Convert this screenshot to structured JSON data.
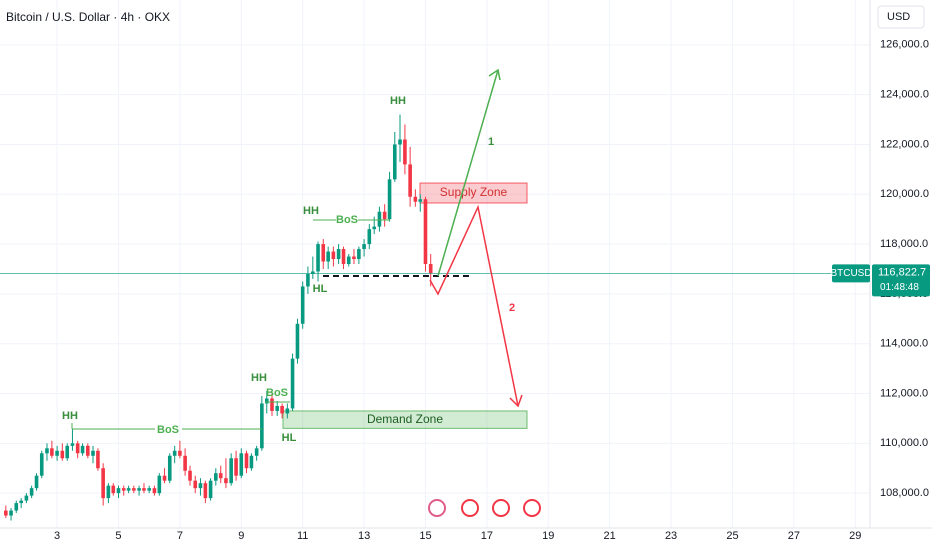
{
  "chart_data": {
    "type": "candlestick",
    "title": "Bitcoin / U.S. Dollar · 4h · OKX",
    "currency": "USD",
    "symbol": "BTCUSD",
    "countdown": "01:48:48",
    "current_price": {
      "value": 116822.7,
      "label": "116,822.7"
    },
    "up_color": "#089981",
    "down_color": "#f23645",
    "x": [
      1.33,
      1.5,
      1.67,
      1.83,
      2,
      2.17,
      2.33,
      2.5,
      2.67,
      2.83,
      3,
      3.17,
      3.33,
      3.5,
      3.67,
      3.83,
      4,
      4.17,
      4.33,
      4.5,
      4.67,
      4.83,
      5,
      5.17,
      5.33,
      5.5,
      5.67,
      5.83,
      6,
      6.17,
      6.33,
      6.5,
      6.67,
      6.83,
      7,
      7.17,
      7.33,
      7.5,
      7.67,
      7.83,
      8,
      8.17,
      8.33,
      8.5,
      8.67,
      8.83,
      9,
      9.17,
      9.33,
      9.5,
      9.67,
      9.83,
      10,
      10.17,
      10.33,
      10.5,
      10.67,
      10.83,
      11,
      11.17,
      11.33,
      11.5,
      11.67,
      11.83,
      12,
      12.17,
      12.33,
      12.5,
      12.67,
      12.83,
      13,
      13.17,
      13.33,
      13.5,
      13.67,
      13.83,
      14,
      14.17,
      14.33,
      14.5,
      14.67,
      14.83,
      15,
      15.17
    ],
    "open": [
      107300,
      107100,
      107300,
      107600,
      107700,
      107900,
      108200,
      108700,
      109600,
      109800,
      109500,
      109700,
      109400,
      109900,
      110000,
      109600,
      109900,
      109500,
      109700,
      109000,
      107800,
      108300,
      108000,
      108200,
      108100,
      108200,
      108100,
      108200,
      108100,
      108200,
      108000,
      108700,
      108500,
      109500,
      109700,
      109500,
      108900,
      108500,
      108200,
      108400,
      107800,
      108500,
      108800,
      108600,
      108400,
      109400,
      108700,
      109600,
      109000,
      109500,
      109800,
      111600,
      111800,
      111300,
      111500,
      111200,
      111400,
      113400,
      114800,
      116300,
      116800,
      116900,
      118000,
      117300,
      117700,
      117400,
      117800,
      117200,
      117500,
      117400,
      117800,
      118000,
      118600,
      118700,
      119300,
      119000,
      120600,
      122000,
      122200,
      121200,
      119900,
      119700,
      119800,
      117200
    ],
    "high": [
      107500,
      107400,
      107700,
      107800,
      108000,
      108300,
      108800,
      109700,
      110000,
      110100,
      109900,
      110000,
      110000,
      110600,
      110100,
      110000,
      110000,
      109900,
      109800,
      109200,
      108400,
      108400,
      108300,
      108300,
      108300,
      108300,
      108300,
      108400,
      108300,
      108300,
      108800,
      109000,
      109600,
      109900,
      110100,
      109800,
      109100,
      108700,
      108600,
      108500,
      108600,
      109000,
      109100,
      109400,
      109600,
      109700,
      109800,
      109700,
      109600,
      109900,
      111900,
      112100,
      112000,
      111700,
      111600,
      111600,
      113600,
      115000,
      116500,
      117100,
      117500,
      118100,
      118200,
      117900,
      117900,
      118000,
      117900,
      117600,
      117800,
      117900,
      118200,
      118800,
      119100,
      119500,
      119600,
      120900,
      122500,
      123200,
      122800,
      121900,
      120200,
      120000,
      119900,
      117600
    ],
    "low": [
      107000,
      106900,
      107200,
      107400,
      107600,
      107800,
      108100,
      108600,
      109300,
      109400,
      109300,
      109300,
      109300,
      109700,
      109400,
      109500,
      109400,
      109200,
      108900,
      107500,
      107600,
      107900,
      107800,
      107900,
      108000,
      108000,
      107900,
      108000,
      108000,
      107900,
      107900,
      108400,
      108400,
      109200,
      109400,
      108700,
      108300,
      108000,
      107900,
      107600,
      107700,
      108300,
      108400,
      108200,
      108300,
      108500,
      108600,
      108800,
      108900,
      109300,
      109700,
      111200,
      111100,
      111100,
      111000,
      111000,
      111300,
      113200,
      114600,
      116000,
      116600,
      116500,
      117000,
      117000,
      117100,
      117200,
      117000,
      117100,
      117200,
      117200,
      117500,
      117800,
      118400,
      118500,
      118700,
      118900,
      120500,
      121300,
      120800,
      119500,
      119500,
      119300,
      116900,
      116300
    ],
    "close": [
      107100,
      107300,
      107600,
      107700,
      107900,
      108200,
      108700,
      109600,
      109800,
      109500,
      109700,
      109400,
      109900,
      110000,
      109600,
      109900,
      109500,
      109700,
      109000,
      107800,
      108300,
      108000,
      108200,
      108100,
      108200,
      108100,
      108200,
      108100,
      108200,
      108000,
      108700,
      108500,
      109500,
      109700,
      109500,
      108900,
      108500,
      108200,
      108400,
      107800,
      108500,
      108800,
      108600,
      108400,
      109400,
      108700,
      109600,
      109000,
      109500,
      109800,
      111600,
      111800,
      111300,
      111500,
      111200,
      111400,
      113400,
      114800,
      116300,
      116800,
      116900,
      118000,
      117300,
      117700,
      117400,
      117800,
      117200,
      117500,
      117400,
      117800,
      118000,
      118600,
      118700,
      119300,
      119000,
      120600,
      122000,
      122200,
      121200,
      119900,
      119700,
      119800,
      117200,
      116822.7
    ],
    "xlim": [
      1.14,
      29.48
    ],
    "ylim": [
      106600,
      127800
    ],
    "xticks": [
      3,
      5,
      7,
      9,
      11,
      13,
      15,
      17,
      19,
      21,
      23,
      25,
      27,
      29
    ],
    "yticks": [
      {
        "value": 108000,
        "label": "108,000.0"
      },
      {
        "value": 110000,
        "label": "110,000.0"
      },
      {
        "value": 112000,
        "label": "112,000.0"
      },
      {
        "value": 114000,
        "label": "114,000.0"
      },
      {
        "value": 116000,
        "label": "116,000.0"
      },
      {
        "value": 118000,
        "label": "118,000.0"
      },
      {
        "value": 120000,
        "label": "120,000.0"
      },
      {
        "value": 122000,
        "label": "122,000.0"
      },
      {
        "value": 124000,
        "label": "124,000.0"
      },
      {
        "value": 126000,
        "label": "126,000.0"
      }
    ],
    "grid": true,
    "zones": [
      {
        "label": "Supply Zone",
        "range": [
          119650,
          120450
        ],
        "color": "#f23645"
      },
      {
        "label": "Demand Zone",
        "range": [
          110600,
          111300
        ],
        "color": "#4caf50"
      }
    ],
    "annotations": [
      "HH",
      "BoS",
      "HH",
      "BoS",
      "HL",
      "HH",
      "BoS",
      "HL",
      "HH",
      "1",
      "2"
    ]
  }
}
